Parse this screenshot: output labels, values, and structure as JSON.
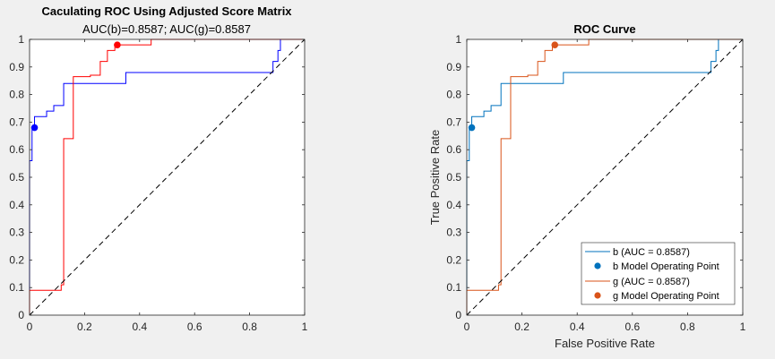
{
  "chart_data": [
    {
      "type": "line",
      "title": "Caculating ROC Using Adjusted Score Matrix",
      "subtitle": "AUC(b)=0.8587; AUC(g)=0.8587",
      "xlabel": "",
      "ylabel": "",
      "xlim": [
        0,
        1
      ],
      "ylim": [
        0,
        1
      ],
      "xticks": [
        "0",
        "0.2",
        "0.4",
        "0.6",
        "0.8",
        "1"
      ],
      "yticks": [
        "0",
        "0.1",
        "0.2",
        "0.3",
        "0.4",
        "0.5",
        "0.6",
        "0.7",
        "0.8",
        "0.9",
        "1"
      ],
      "grid": false,
      "legend": "none",
      "series": [
        {
          "color": "#0000ff",
          "x": [
            0,
            0,
            0.009,
            0.009,
            0.018,
            0.018,
            0.035,
            0.035,
            0.062,
            0.062,
            0.088,
            0.088,
            0.124,
            0.124,
            0.35,
            0.35,
            0.885,
            0.885,
            0.903,
            0.903,
            0.912,
            0.912,
            1
          ],
          "y": [
            0,
            0.56,
            0.56,
            0.68,
            0.68,
            0.72,
            0.72,
            0.72,
            0.72,
            0.74,
            0.74,
            0.76,
            0.76,
            0.84,
            0.84,
            0.88,
            0.88,
            0.92,
            0.92,
            0.96,
            0.96,
            1,
            1
          ]
        },
        {
          "color": "#ff0000",
          "x": [
            0,
            0,
            0.115,
            0.115,
            0.124,
            0.124,
            0.159,
            0.159,
            0.221,
            0.221,
            0.257,
            0.257,
            0.283,
            0.283,
            0.31,
            0.31,
            0.319,
            0.319,
            0.442,
            0.442,
            1
          ],
          "y": [
            0,
            0.09,
            0.09,
            0.11,
            0.11,
            0.64,
            0.64,
            0.865,
            0.865,
            0.87,
            0.87,
            0.92,
            0.92,
            0.96,
            0.96,
            0.98,
            0.98,
            0.98,
            0.98,
            1,
            1
          ]
        },
        {
          "color": "#000000",
          "dash": true,
          "x": [
            0,
            1
          ],
          "y": [
            0,
            1
          ]
        }
      ],
      "points": [
        {
          "x": 0.018,
          "y": 0.68,
          "color": "#0000ff"
        },
        {
          "x": 0.319,
          "y": 0.98,
          "color": "#ff0000"
        }
      ]
    },
    {
      "type": "line",
      "title": "ROC Curve",
      "xlabel": "False Positive Rate",
      "ylabel": "True Positive Rate",
      "xlim": [
        0,
        1
      ],
      "ylim": [
        0,
        1
      ],
      "xticks": [
        "0",
        "0.2",
        "0.4",
        "0.6",
        "0.8",
        "1"
      ],
      "yticks": [
        "0",
        "0.1",
        "0.2",
        "0.3",
        "0.4",
        "0.5",
        "0.6",
        "0.7",
        "0.8",
        "0.9",
        "1"
      ],
      "grid": false,
      "legend": "bottom-right",
      "legend_entries": [
        {
          "label": "b (AUC = 0.8587)",
          "kind": "line",
          "color": "#0072bd"
        },
        {
          "label": "b Model Operating Point",
          "kind": "marker",
          "color": "#0072bd"
        },
        {
          "label": "g (AUC = 0.8587)",
          "kind": "line",
          "color": "#d95319"
        },
        {
          "label": "g Model Operating Point",
          "kind": "marker",
          "color": "#d95319"
        }
      ],
      "series": [
        {
          "name": "b (AUC = 0.8587)",
          "color": "#0072bd",
          "x": [
            0,
            0,
            0.009,
            0.009,
            0.018,
            0.018,
            0.035,
            0.035,
            0.062,
            0.062,
            0.088,
            0.088,
            0.124,
            0.124,
            0.35,
            0.35,
            0.885,
            0.885,
            0.903,
            0.903,
            0.912,
            0.912,
            1
          ],
          "y": [
            0,
            0.56,
            0.56,
            0.68,
            0.68,
            0.72,
            0.72,
            0.72,
            0.72,
            0.74,
            0.74,
            0.76,
            0.76,
            0.84,
            0.84,
            0.88,
            0.88,
            0.92,
            0.92,
            0.96,
            0.96,
            1,
            1
          ]
        },
        {
          "name": "g (AUC = 0.8587)",
          "color": "#d95319",
          "x": [
            0,
            0,
            0.115,
            0.115,
            0.124,
            0.124,
            0.159,
            0.159,
            0.221,
            0.221,
            0.257,
            0.257,
            0.283,
            0.283,
            0.31,
            0.31,
            0.319,
            0.319,
            0.442,
            0.442,
            1
          ],
          "y": [
            0,
            0.09,
            0.09,
            0.11,
            0.11,
            0.64,
            0.64,
            0.865,
            0.865,
            0.87,
            0.87,
            0.92,
            0.92,
            0.96,
            0.96,
            0.98,
            0.98,
            0.98,
            0.98,
            1,
            1
          ]
        },
        {
          "color": "#000000",
          "dash": true,
          "x": [
            0,
            1
          ],
          "y": [
            0,
            1
          ]
        }
      ],
      "points": [
        {
          "name": "b Model Operating Point",
          "x": 0.018,
          "y": 0.68,
          "color": "#0072bd"
        },
        {
          "name": "g Model Operating Point",
          "x": 0.319,
          "y": 0.98,
          "color": "#d95319"
        }
      ]
    }
  ]
}
